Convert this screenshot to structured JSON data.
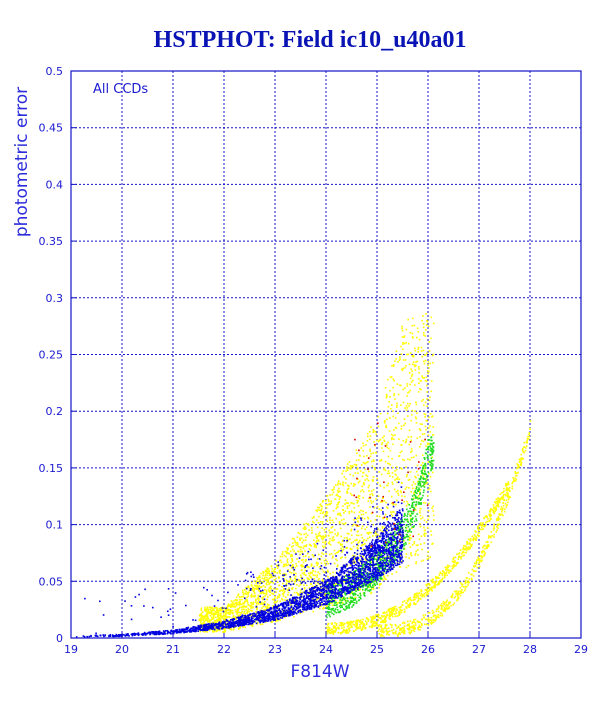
{
  "chart_data": {
    "type": "scatter",
    "title": "HSTPHOT: Field ic10_u40a01",
    "xlabel": "F814W",
    "ylabel": "photometric error",
    "xlim": [
      19,
      29
    ],
    "ylim": [
      0,
      0.5
    ],
    "x_ticks": [
      "19",
      "20",
      "21",
      "22",
      "23",
      "24",
      "25",
      "26",
      "27",
      "28",
      "29"
    ],
    "y_ticks": [
      "0",
      "0.05",
      "0.1",
      "0.15",
      "0.2",
      "0.25",
      "0.3",
      "0.35",
      "0.4",
      "0.45",
      "0.5"
    ],
    "grid": true,
    "annotation": "All CCDs",
    "colors": {
      "axis": "#1414c8",
      "title": "#0a14b4",
      "blue_points": "#0000e0",
      "green_points": "#22dd22",
      "yellow_points": "#ffff00",
      "red_points": "#dd0000"
    },
    "series": [
      {
        "color": "blue",
        "description_points": [
          [
            19.0,
            0.002
          ],
          [
            20.0,
            0.003
          ],
          [
            21.0,
            0.006
          ],
          [
            22.0,
            0.012
          ],
          [
            23.0,
            0.022
          ],
          [
            24.0,
            0.04
          ],
          [
            24.5,
            0.055
          ],
          [
            25.0,
            0.07
          ],
          [
            25.5,
            0.09
          ]
        ]
      },
      {
        "color": "green",
        "description_points": [
          [
            24.0,
            0.03
          ],
          [
            24.5,
            0.04
          ],
          [
            25.0,
            0.06
          ],
          [
            25.5,
            0.09
          ],
          [
            25.8,
            0.12
          ],
          [
            26.0,
            0.16
          ]
        ]
      },
      {
        "color": "yellow",
        "description_points": [
          [
            22.0,
            0.02
          ],
          [
            23.0,
            0.05
          ],
          [
            24.0,
            0.09
          ],
          [
            25.0,
            0.14
          ],
          [
            25.5,
            0.2
          ],
          [
            26.0,
            0.008
          ],
          [
            27.0,
            0.09
          ],
          [
            27.5,
            0.15
          ],
          [
            28.0,
            0.21
          ]
        ]
      },
      {
        "color": "red",
        "description_points": [
          [
            25.0,
            0.19
          ],
          [
            25.3,
            0.12
          ],
          [
            25.8,
            0.15
          ],
          [
            24.6,
            0.1
          ]
        ]
      }
    ]
  }
}
